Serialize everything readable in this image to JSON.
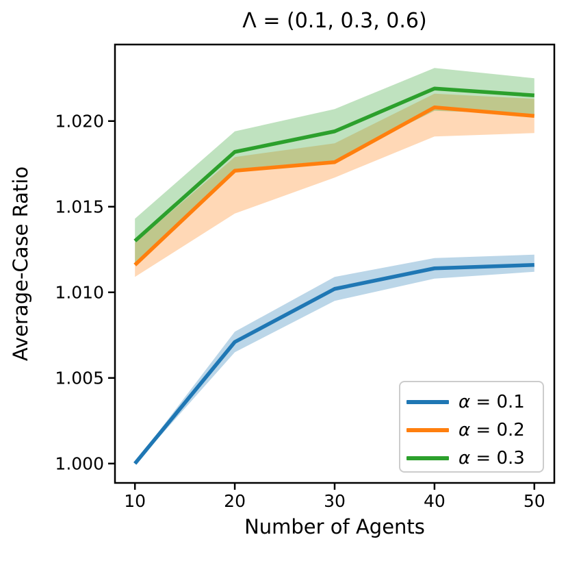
{
  "chart_data": {
    "type": "line",
    "title": "Λ = (0.1, 0.3, 0.6)",
    "xlabel": "Number of Agents",
    "ylabel": "Average-Case Ratio",
    "x": [
      10,
      20,
      30,
      40,
      50
    ],
    "xlim": [
      8,
      52
    ],
    "ylim": [
      0.99887,
      1.02447
    ],
    "grid": false,
    "legend_position": "lower right",
    "x_ticks": {
      "values": [
        10,
        20,
        30,
        40,
        50
      ],
      "labels": [
        "10",
        "20",
        "30",
        "40",
        "50"
      ]
    },
    "y_ticks": {
      "values": [
        1.0,
        1.005,
        1.01,
        1.015,
        1.02
      ],
      "labels": [
        "1.000",
        "1.005",
        "1.010",
        "1.015",
        "1.020"
      ]
    },
    "series": [
      {
        "name": "α = 0.1",
        "color": "#1f77b4",
        "band_alpha": 0.3,
        "values": [
          1.0,
          1.0071,
          1.0102,
          1.0114,
          1.0116
        ],
        "band_low": [
          0.99995,
          1.0065,
          1.0095,
          1.0108,
          1.0112
        ],
        "band_high": [
          1.00005,
          1.0077,
          1.0109,
          1.012,
          1.0122
        ]
      },
      {
        "name": "α = 0.2",
        "color": "#ff7f0e",
        "band_alpha": 0.3,
        "values": [
          1.0116,
          1.0171,
          1.0176,
          1.0208,
          1.0203
        ],
        "band_low": [
          1.0109,
          1.0146,
          1.0167,
          1.0191,
          1.0193
        ],
        "band_high": [
          1.0129,
          1.0179,
          1.0187,
          1.0216,
          1.0213
        ]
      },
      {
        "name": "α = 0.3",
        "color": "#2ca02c",
        "band_alpha": 0.3,
        "values": [
          1.013,
          1.0182,
          1.0194,
          1.0219,
          1.0215
        ],
        "band_low": [
          1.0117,
          1.0172,
          1.0177,
          1.0206,
          1.0204
        ],
        "band_high": [
          1.0143,
          1.0194,
          1.0207,
          1.0231,
          1.0225
        ]
      }
    ]
  }
}
